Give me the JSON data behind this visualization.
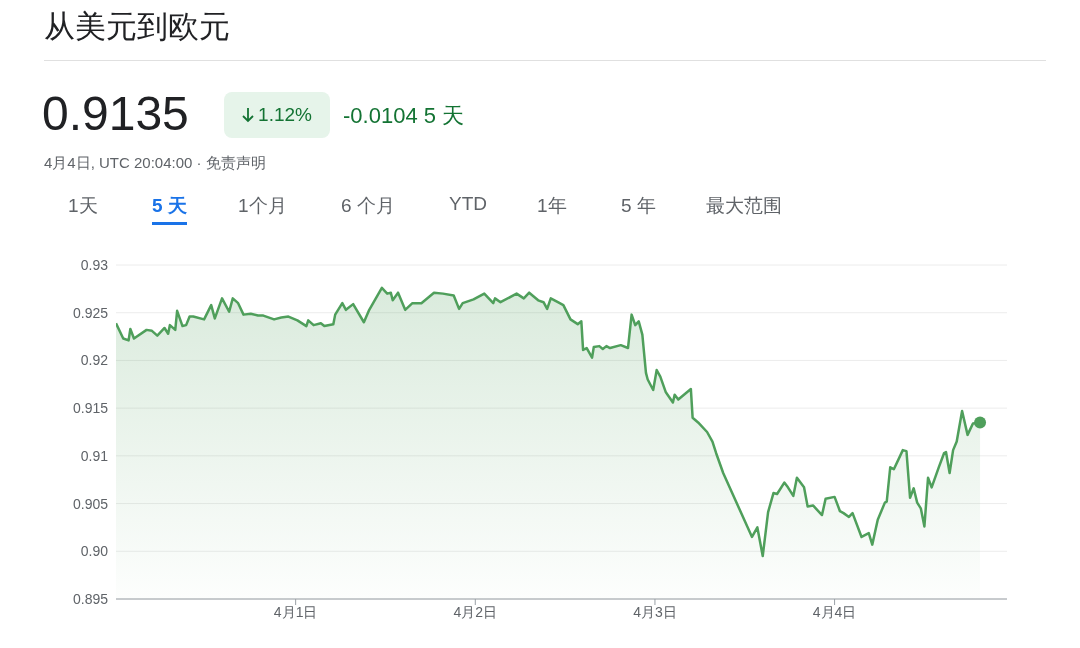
{
  "chart_data": {
    "type": "area",
    "title": "从美元到欧元",
    "annotations": [
      "0.9135",
      "1.12%",
      "-0.0104 5 天",
      "4月4日, UTC 20:04:00 · 免责声明",
      "1天",
      "5 天",
      "1个月",
      "6 个月",
      "YTD",
      "1年",
      "5 年",
      "最大范围"
    ],
    "x": [
      "--03-31T00:00",
      "--03-31T00:58",
      "--03-31T01:41",
      "--03-31T01:55",
      "--03-31T02:24",
      "--03-31T04:05",
      "--03-31T04:48",
      "--03-31T05:31",
      "--03-31T06:29",
      "--03-31T06:58",
      "--03-31T07:12",
      "--03-31T07:55",
      "--03-31T08:10",
      "--03-31T08:53",
      "--03-31T09:22",
      "--03-31T09:50",
      "--03-31T10:19",
      "--03-31T11:46",
      "--03-31T12:43",
      "--03-31T13:12",
      "--03-31T14:10",
      "--03-31T15:07",
      "--03-31T15:36",
      "--03-31T16:19",
      "--03-31T17:02",
      "--03-31T18:00",
      "--03-31T18:58",
      "--03-31T19:41",
      "--03-31T21:07",
      "--03-31T22:05",
      "--03-31T23:02",
      "--04-01T00:14",
      "--04-01T01:26",
      "--04-01T01:41",
      "--04-01T02:24",
      "--04-01T03:22",
      "--04-01T03:50",
      "--04-01T05:02",
      "--04-01T05:17",
      "--04-01T06:14",
      "--04-01T06:43",
      "--04-01T07:41",
      "--04-01T09:07",
      "--04-01T09:50",
      "--04-01T11:31",
      "--04-01T12:14",
      "--04-01T12:43",
      "--04-01T12:58",
      "--04-01T13:41",
      "--04-01T14:38",
      "--04-01T15:36",
      "--04-01T16:48",
      "--04-01T18:29",
      "--04-01T19:41",
      "--04-01T21:07",
      "--04-01T21:50",
      "--04-01T22:19",
      "--04-01T23:46",
      "--04-02T01:12",
      "--04-02T02:24",
      "--04-02T02:38",
      "--04-02T03:22",
      "--04-02T05:31",
      "--04-02T06:29",
      "--04-02T07:12",
      "--04-02T08:24",
      "--04-02T09:07",
      "--04-02T09:36",
      "--04-02T10:05",
      "--04-02T11:02",
      "--04-02T11:46",
      "--04-02T12:43",
      "--04-02T13:41",
      "--04-02T14:10",
      "--04-02T14:24",
      "--04-02T14:53",
      "--04-02T15:36",
      "--04-02T15:50",
      "--04-02T16:34",
      "--04-02T17:02",
      "--04-02T17:31",
      "--04-02T18:00",
      "--04-02T19:26",
      "--04-02T20:24",
      "--04-02T20:53",
      "--04-02T21:22",
      "--04-02T21:50",
      "--04-02T22:19",
      "--04-02T22:48",
      "--04-02T23:02",
      "--04-02T23:46",
      "--04-03T00:14",
      "--04-03T00:43",
      "--04-03T01:26",
      "--04-03T02:24",
      "--04-03T02:38",
      "--04-03T03:07",
      "--04-03T04:48",
      "--04-03T05:02",
      "--04-03T05:46",
      "--04-03T06:58",
      "--04-03T07:41",
      "--04-03T08:10",
      "--04-03T09:07",
      "--04-03T12:58",
      "--04-03T13:41",
      "--04-03T14:24",
      "--04-03T15:07",
      "--04-03T15:50",
      "--04-03T16:19",
      "--04-03T17:17",
      "--04-03T17:46",
      "--04-03T18:29",
      "--04-03T18:58",
      "--04-03T19:55",
      "--04-03T20:24",
      "--04-03T21:07",
      "--04-03T22:19",
      "--04-03T22:48",
      "--04-04T00:00",
      "--04-04T00:43",
      "--04-04T01:12",
      "--04-04T01:55",
      "--04-04T02:24",
      "--04-04T03:36",
      "--04-04T04:34",
      "--04-04T05:02",
      "--04-04T05:46",
      "--04-04T06:43",
      "--04-04T06:58",
      "--04-04T07:26",
      "--04-04T07:55",
      "--04-04T09:07",
      "--04-04T09:36",
      "--04-04T10:05",
      "--04-04T10:34",
      "--04-04T11:02",
      "--04-04T11:31",
      "--04-04T12:00",
      "--04-04T12:29",
      "--04-04T12:58",
      "--04-04T13:55",
      "--04-04T14:38",
      "--04-04T14:53",
      "--04-04T15:22",
      "--04-04T15:50",
      "--04-04T16:19",
      "--04-04T17:02",
      "--04-04T17:46",
      "--04-04T18:29",
      "--04-04T19:26"
    ],
    "series": [
      {
        "color": "#4f9f5b",
        "values": [
          0.9239,
          0.9223,
          0.9221,
          0.9233,
          0.9223,
          0.9232,
          0.9231,
          0.9226,
          0.9234,
          0.9228,
          0.9237,
          0.9232,
          0.9252,
          0.9236,
          0.9237,
          0.9246,
          0.9246,
          0.9243,
          0.9258,
          0.9244,
          0.9265,
          0.9251,
          0.9265,
          0.926,
          0.9248,
          0.9249,
          0.9247,
          0.9247,
          0.9243,
          0.9245,
          0.9246,
          0.9242,
          0.9236,
          0.9242,
          0.9237,
          0.9239,
          0.9236,
          0.9238,
          0.9248,
          0.926,
          0.9253,
          0.9259,
          0.924,
          0.9253,
          0.9276,
          0.927,
          0.9271,
          0.9263,
          0.9271,
          0.9253,
          0.926,
          0.926,
          0.9271,
          0.927,
          0.9268,
          0.9254,
          0.926,
          0.9264,
          0.927,
          0.926,
          0.9265,
          0.9261,
          0.927,
          0.9265,
          0.9271,
          0.9263,
          0.9261,
          0.9254,
          0.9265,
          0.9261,
          0.9258,
          0.9243,
          0.9238,
          0.9241,
          0.9211,
          0.9213,
          0.9203,
          0.9214,
          0.9215,
          0.9212,
          0.9215,
          0.9213,
          0.9216,
          0.9213,
          0.9248,
          0.9237,
          0.9241,
          0.9227,
          0.9187,
          0.918,
          0.9169,
          0.919,
          0.9183,
          0.9167,
          0.9156,
          0.9164,
          0.9159,
          0.917,
          0.914,
          0.9135,
          0.9125,
          0.9115,
          0.9103,
          0.9082,
          0.9015,
          0.9025,
          0.8995,
          0.9041,
          0.9061,
          0.906,
          0.9072,
          0.9067,
          0.9058,
          0.9077,
          0.9067,
          0.9047,
          0.9048,
          0.9038,
          0.9055,
          0.9057,
          0.9042,
          0.904,
          0.9036,
          0.904,
          0.9015,
          0.9019,
          0.9007,
          0.9033,
          0.9051,
          0.9052,
          0.9088,
          0.9086,
          0.9106,
          0.9105,
          0.9056,
          0.9066,
          0.9051,
          0.9045,
          0.9026,
          0.9077,
          0.9067,
          0.9088,
          0.9103,
          0.9104,
          0.9082,
          0.9106,
          0.9115,
          0.9147,
          0.9122,
          0.9134,
          0.9135
        ]
      }
    ],
    "xlim": [
      "--03-31",
      "--04-04T23:02"
    ],
    "xticks": [
      {
        "value": "--04-01",
        "label": "4月1日"
      },
      {
        "value": "--04-02",
        "label": "4月2日"
      },
      {
        "value": "--04-03",
        "label": "4月3日"
      },
      {
        "value": "--04-04",
        "label": "4月4日"
      }
    ],
    "ylim": [
      0.895,
      0.93
    ],
    "yticks": [
      0.93,
      0.925,
      0.92,
      0.915,
      0.91,
      0.905,
      {
        "value": 0.9,
        "label": "0.90"
      },
      0.895
    ],
    "grid": "y"
  }
}
